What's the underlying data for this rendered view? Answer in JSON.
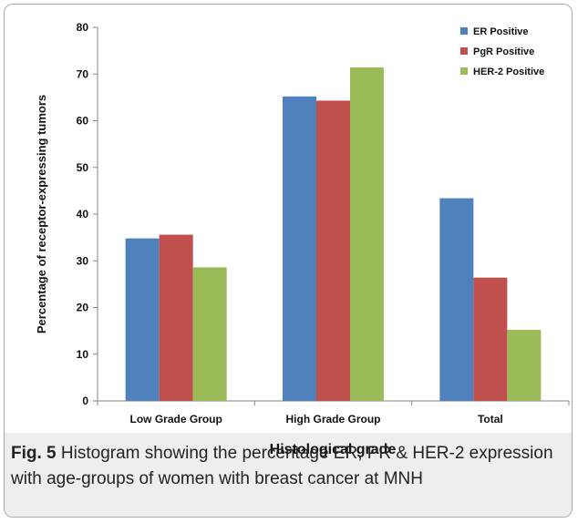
{
  "chart_data": {
    "type": "bar",
    "categories": [
      "Low Grade Group",
      "High Grade Group",
      "Total"
    ],
    "series": [
      {
        "name": "ER Positive",
        "color": "#4f81bd",
        "values": [
          34.8,
          65.2,
          43.4
        ]
      },
      {
        "name": "PgR Positive",
        "color": "#c0504d",
        "values": [
          35.6,
          64.3,
          26.4
        ]
      },
      {
        "name": "HER-2 Positive",
        "color": "#9bbb59",
        "values": [
          28.6,
          71.4,
          15.2
        ]
      }
    ],
    "xlabel": "Histological grade",
    "ylabel": "Percentage of receptor-expressing tumors",
    "ylim": [
      0,
      80
    ],
    "yticks": [
      0,
      10,
      20,
      30,
      40,
      50,
      60,
      70,
      80
    ],
    "legend_position": "top-right",
    "grid": false
  },
  "caption": {
    "label": "Fig. 5",
    "text": "Histogram showing the percentage ER, PR & HER-2 expression with age-groups of women with breast cancer at MNH"
  }
}
